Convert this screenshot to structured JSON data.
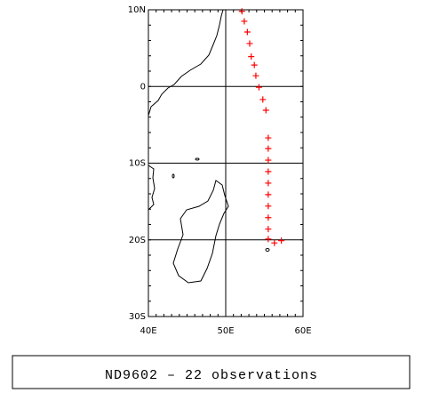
{
  "chart_data": {
    "type": "scatter",
    "title": "ND9602 – 22 observations",
    "xlim": [
      40,
      60
    ],
    "ylim": [
      -30,
      10
    ],
    "xticks": [
      {
        "value": 40,
        "label": "40E"
      },
      {
        "value": 50,
        "label": "50E"
      },
      {
        "value": 60,
        "label": "60E"
      }
    ],
    "yticks": [
      {
        "value": -30,
        "label": "30S"
      },
      {
        "value": -20,
        "label": "20S"
      },
      {
        "value": -10,
        "label": "10S"
      },
      {
        "value": 0,
        "label": "0"
      },
      {
        "value": 10,
        "label": "10N"
      }
    ],
    "grid": true,
    "color": "#ff0000",
    "x": [
      52.1,
      52.4,
      52.8,
      53.1,
      53.3,
      53.7,
      53.9,
      54.3,
      54.8,
      55.2,
      55.5,
      55.5,
      55.5,
      55.5,
      55.5,
      55.5,
      55.5,
      55.5,
      55.5,
      55.5,
      56.3,
      57.2
    ],
    "values": [
      9.8,
      8.5,
      7.1,
      5.6,
      3.9,
      2.8,
      1.4,
      -0.1,
      -1.7,
      -3.1,
      -6.7,
      -8.1,
      -9.6,
      -11.1,
      -12.6,
      -14.1,
      -15.6,
      -17.1,
      -18.6,
      -19.9,
      -20.4,
      -20.1
    ]
  }
}
